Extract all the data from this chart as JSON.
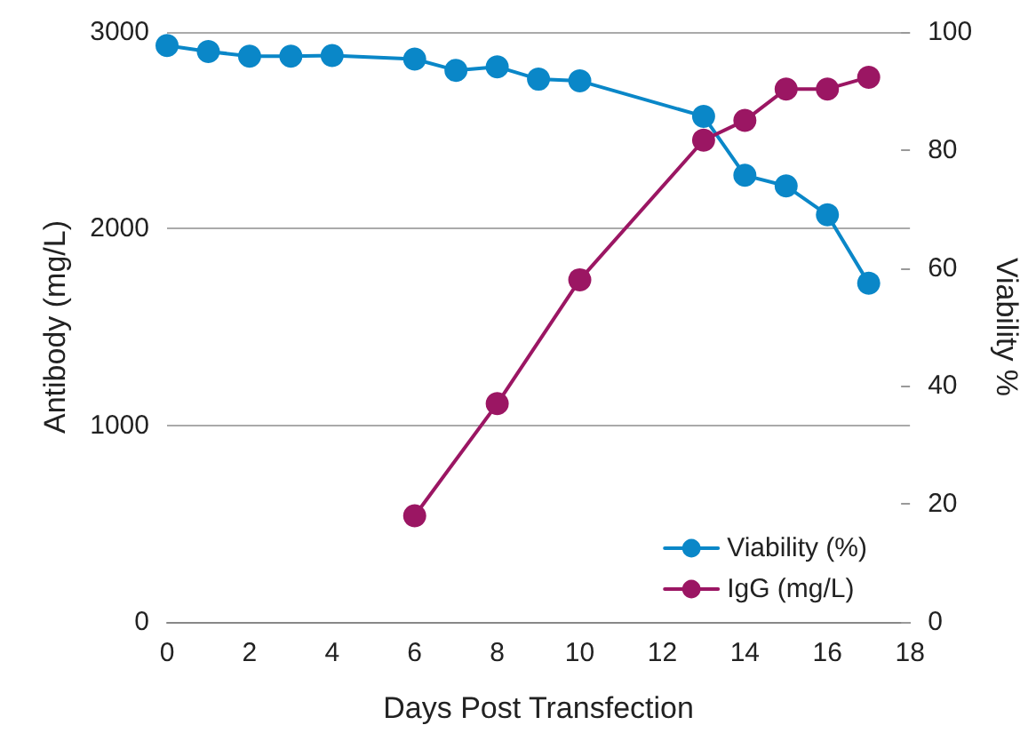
{
  "chart_data": {
    "type": "line",
    "xlabel": "Days Post Transfection",
    "ylabel": "Antibody (mg/L)",
    "y2label": "Viability %",
    "xlim": [
      0,
      18
    ],
    "xticks": [
      0,
      2,
      4,
      6,
      8,
      10,
      12,
      14,
      16,
      18
    ],
    "ylim": [
      0,
      3000
    ],
    "yticks": [
      0,
      1000,
      2000,
      3000
    ],
    "y2lim": [
      0,
      100
    ],
    "y2ticks": [
      0,
      20,
      40,
      60,
      80,
      100
    ],
    "grid": "y",
    "legend": "bottom right",
    "marker": "circle",
    "line_style": "solid",
    "series": [
      {
        "name": "Viability (%)",
        "color": "#0a87c8",
        "axis": "y2",
        "x": [
          0,
          1,
          2,
          3,
          4,
          6,
          7,
          8,
          9,
          10,
          13,
          14,
          15,
          16,
          17
        ],
        "values": [
          97.7,
          96.7,
          95.9,
          95.9,
          96.0,
          95.4,
          93.5,
          94.1,
          92.0,
          91.7,
          85.7,
          75.7,
          73.9,
          69.0,
          57.4
        ]
      },
      {
        "name": "IgG (mg/L)",
        "color": "#9b1663",
        "axis": "y",
        "x": [
          6,
          8,
          10,
          13,
          14,
          15,
          16,
          17
        ],
        "values": [
          540,
          1110,
          1740,
          2450,
          2550,
          2710,
          2710,
          2770
        ]
      }
    ]
  }
}
